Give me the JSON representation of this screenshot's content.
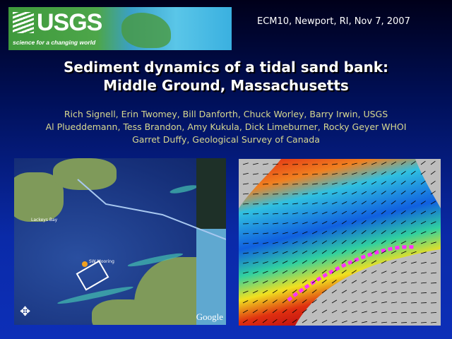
{
  "logo": {
    "text": "USGS",
    "tagline": "science for a changing world"
  },
  "meeting": "ECM10, Newport, RI, Nov 7, 2007",
  "title": {
    "line1": "Sediment dynamics of a tidal sand bank:",
    "line2": "Middle Ground, Massachusetts"
  },
  "authors": [
    "Rich Signell, Erin Twomey, Bill Danforth, Chuck Worley, Barry Irwin, USGS",
    "Al Plueddemann, Tess Brandon, Amy Kukula, Dick Limeburner, Rocky Geyer WHOI",
    "Garret Duffy, Geological Survey of Canada"
  ],
  "satellite": {
    "labels": {
      "bay": "Lackeys Bay",
      "mooring": "SW Mooring",
      "attribution": "Google"
    }
  },
  "model": {
    "colors": {
      "land": "#bdbdbd",
      "high": "#e02010",
      "mid": "#f0e020",
      "low": "#1060e0",
      "sand": "#ff30ff"
    }
  }
}
